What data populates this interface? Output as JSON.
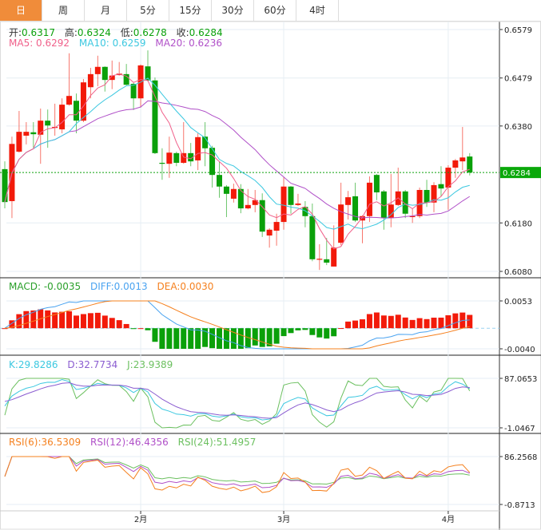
{
  "tabs": [
    "日",
    "周",
    "月",
    "5分",
    "15分",
    "30分",
    "60分",
    "4时"
  ],
  "ohlc_legend": {
    "open_label": "开:",
    "open": "0.6317",
    "high_label": "高:",
    "high": "0.6324",
    "low_label": "低:",
    "low": "0.6278",
    "close_label": "收:",
    "close": "0.6284"
  },
  "ma_legend": {
    "ma5": "MA5: 0.6292",
    "ma10": "MA10: 0.6259",
    "ma20": "MA20: 0.6236"
  },
  "macd_legend": {
    "macd": "MACD: -0.0035",
    "diff": "DIFF:0.0013",
    "dea": "DEA:0.0030"
  },
  "kdj_legend": {
    "k": "K:29.8286",
    "d": "D:32.7734",
    "j": "J:23.9389"
  },
  "rsi_legend": {
    "rsi6": "RSI(6):36.5309",
    "rsi12": "RSI(12):46.4356",
    "rsi24": "RSI(24):51.4957"
  },
  "colors": {
    "up": "#f21a0a",
    "down": "#0aa00a",
    "ma5": "#f0608a",
    "ma10": "#3cc8e0",
    "ma20": "#b050c8",
    "diff": "#4aa3f0",
    "dea": "#f5801e",
    "k": "#3cc8e0",
    "d": "#8a5cd0",
    "j": "#6cc060",
    "rsi6": "#f5801e",
    "rsi12": "#b050c8",
    "rsi24": "#6cc060",
    "accent": "#f08c3a"
  },
  "chart_data": {
    "type": "candlestick",
    "price_axis": {
      "ticks": [
        "0.6579",
        "0.6479",
        "0.6380",
        "0.6180",
        "0.6080"
      ],
      "range": [
        0.608,
        0.6579
      ],
      "last_price": "0.6284"
    },
    "macd_axis": {
      "ticks": [
        "0.0053",
        "-0.0040"
      ],
      "range": [
        -0.004,
        0.0053
      ]
    },
    "kdj_axis": {
      "ticks": [
        "87.0653",
        "-1.0467"
      ],
      "range": [
        -1.0467,
        87.0653
      ]
    },
    "rsi_axis": {
      "ticks": [
        "86.2568",
        "-0.8713"
      ],
      "range": [
        -0.8713,
        86.2568
      ]
    },
    "x_labels": [
      {
        "label": "2月",
        "index": 19
      },
      {
        "label": "3月",
        "index": 39
      },
      {
        "label": "4月",
        "index": 62
      }
    ],
    "candles": [
      [
        0.6291,
        0.6307,
        0.621,
        0.6223
      ],
      [
        0.6225,
        0.6358,
        0.619,
        0.6343
      ],
      [
        0.6327,
        0.6411,
        0.6325,
        0.6368
      ],
      [
        0.636,
        0.6388,
        0.6342,
        0.6368
      ],
      [
        0.6367,
        0.6388,
        0.6335,
        0.6363
      ],
      [
        0.6362,
        0.6416,
        0.6302,
        0.6391
      ],
      [
        0.6391,
        0.6414,
        0.6335,
        0.6381
      ],
      [
        0.6376,
        0.6426,
        0.636,
        0.6378
      ],
      [
        0.6373,
        0.6437,
        0.6365,
        0.6424
      ],
      [
        0.6424,
        0.653,
        0.6422,
        0.6442
      ],
      [
        0.6432,
        0.6447,
        0.6365,
        0.6391
      ],
      [
        0.6391,
        0.6477,
        0.6388,
        0.647
      ],
      [
        0.646,
        0.65,
        0.6437,
        0.6487
      ],
      [
        0.6487,
        0.6525,
        0.6462,
        0.6502
      ],
      [
        0.6502,
        0.6503,
        0.6451,
        0.6475
      ],
      [
        0.6475,
        0.6515,
        0.6456,
        0.6484
      ],
      [
        0.6485,
        0.6512,
        0.6484,
        0.6488
      ],
      [
        0.6487,
        0.6508,
        0.6464,
        0.6465
      ],
      [
        0.6467,
        0.6469,
        0.6413,
        0.6437
      ],
      [
        0.6437,
        0.6507,
        0.6418,
        0.6505
      ],
      [
        0.6503,
        0.6536,
        0.6472,
        0.6474
      ],
      [
        0.6474,
        0.648,
        0.6322,
        0.6324
      ],
      [
        0.6304,
        0.6334,
        0.6269,
        0.6302
      ],
      [
        0.6302,
        0.6358,
        0.6273,
        0.6325
      ],
      [
        0.6324,
        0.6327,
        0.6297,
        0.6304
      ],
      [
        0.6304,
        0.6388,
        0.6302,
        0.6324
      ],
      [
        0.6324,
        0.6345,
        0.6297,
        0.6307
      ],
      [
        0.6309,
        0.6365,
        0.6289,
        0.6357
      ],
      [
        0.6358,
        0.6388,
        0.6297,
        0.6334
      ],
      [
        0.6335,
        0.6339,
        0.6253,
        0.6279
      ],
      [
        0.6279,
        0.6306,
        0.6232,
        0.6255
      ],
      [
        0.6255,
        0.6258,
        0.6192,
        0.624
      ],
      [
        0.623,
        0.6261,
        0.6222,
        0.625
      ],
      [
        0.625,
        0.626,
        0.62,
        0.621
      ],
      [
        0.621,
        0.625,
        0.6208,
        0.6217
      ],
      [
        0.6217,
        0.6248,
        0.6202,
        0.6227
      ],
      [
        0.6227,
        0.6241,
        0.6151,
        0.6162
      ],
      [
        0.6154,
        0.6169,
        0.6129,
        0.6166
      ],
      [
        0.6164,
        0.6199,
        0.6133,
        0.6182
      ],
      [
        0.6182,
        0.6274,
        0.6166,
        0.6255
      ],
      [
        0.6255,
        0.6256,
        0.6199,
        0.6217
      ],
      [
        0.6217,
        0.624,
        0.6215,
        0.622
      ],
      [
        0.6213,
        0.6225,
        0.6171,
        0.6194
      ],
      [
        0.6194,
        0.622,
        0.6101,
        0.6105
      ],
      [
        0.6105,
        0.6136,
        0.6083,
        0.6106
      ],
      [
        0.6105,
        0.6149,
        0.6093,
        0.6098
      ],
      [
        0.609,
        0.6175,
        0.609,
        0.6129
      ],
      [
        0.6139,
        0.6263,
        0.6134,
        0.6218
      ],
      [
        0.6217,
        0.6246,
        0.6187,
        0.6233
      ],
      [
        0.6235,
        0.6263,
        0.6182,
        0.6185
      ],
      [
        0.6185,
        0.6196,
        0.6138,
        0.6194
      ],
      [
        0.6194,
        0.6276,
        0.6182,
        0.6263
      ],
      [
        0.6279,
        0.6281,
        0.6227,
        0.6243
      ],
      [
        0.6245,
        0.6248,
        0.6166,
        0.619
      ],
      [
        0.619,
        0.6281,
        0.6171,
        0.6218
      ],
      [
        0.6217,
        0.6294,
        0.6215,
        0.6245
      ],
      [
        0.6245,
        0.6248,
        0.619,
        0.6199
      ],
      [
        0.6192,
        0.621,
        0.618,
        0.6194
      ],
      [
        0.6194,
        0.6253,
        0.619,
        0.6248
      ],
      [
        0.6248,
        0.6269,
        0.6213,
        0.6222
      ],
      [
        0.6222,
        0.6264,
        0.6202,
        0.6258
      ],
      [
        0.626,
        0.6297,
        0.6235,
        0.6251
      ],
      [
        0.6253,
        0.6299,
        0.6207,
        0.6294
      ],
      [
        0.6294,
        0.6312,
        0.6273,
        0.6309
      ],
      [
        0.6307,
        0.6378,
        0.6289,
        0.6315
      ],
      [
        0.6317,
        0.6324,
        0.6278,
        0.6284
      ]
    ]
  }
}
